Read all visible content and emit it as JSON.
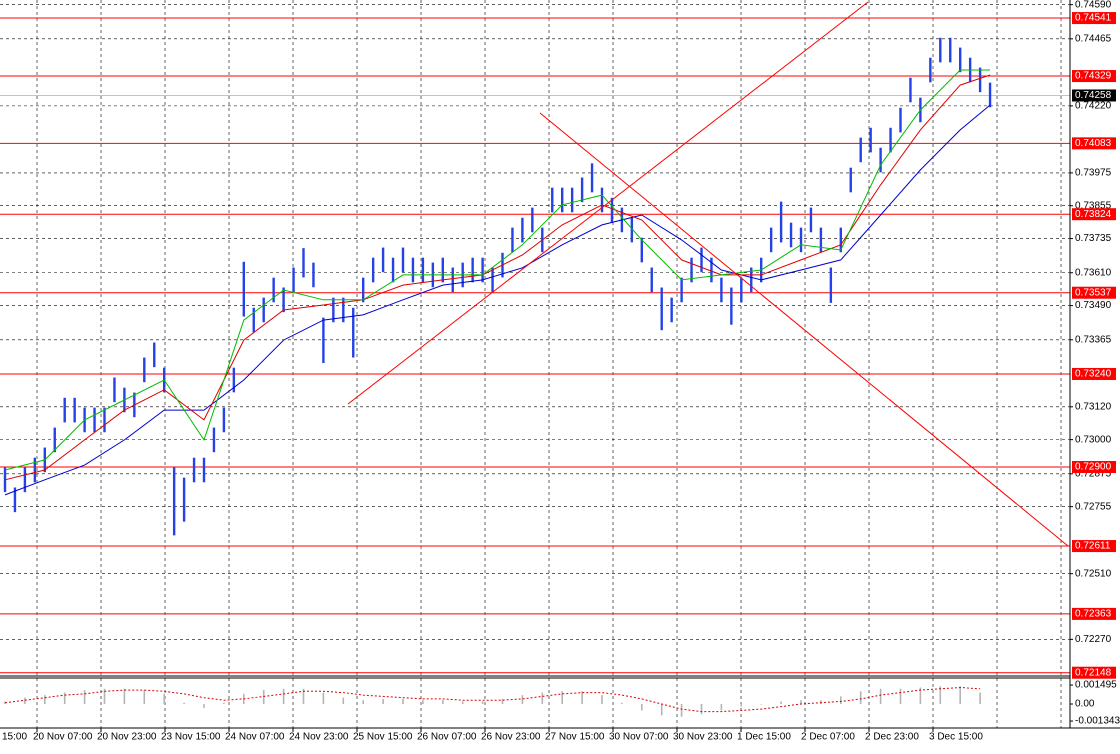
{
  "chart_data": {
    "type": "ohlc",
    "ylim": [
      0.72136,
      0.74607
    ],
    "yticks": [
      {
        "value": 0.7459,
        "label": "0.74590"
      },
      0.74465,
      {
        "value": 0.7422,
        "label": "0.74220"
      },
      0.73975,
      0.73855,
      0.73735,
      {
        "value": 0.7361,
        "label": "0.73610"
      },
      {
        "value": 0.7349,
        "label": "0.73490"
      },
      0.73365,
      {
        "value": 0.7312,
        "label": "0.73120"
      },
      {
        "value": 0.73,
        "label": "0.73000"
      },
      0.72875,
      0.72755,
      {
        "value": 0.7251,
        "label": "0.72510"
      },
      {
        "value": 0.7227,
        "label": "0.72270"
      }
    ],
    "grid": true,
    "levels": [
      0.74541,
      0.74329,
      0.74083,
      0.73824,
      0.73537,
      {
        "value": 0.7324,
        "label": "0.73240"
      },
      {
        "value": 0.729,
        "label": "0.72900"
      },
      0.72611,
      0.72363,
      0.72148
    ],
    "level_color": "#ff0000",
    "current_price": 0.74258,
    "color": "#2442e8",
    "x_labels": [
      "15:00",
      "20 Nov 07:00",
      "20 Nov 23:00",
      "23 Nov 15:00",
      "24 Nov 07:00",
      "24 Nov 23:00",
      "25 Nov 15:00",
      "26 Nov 07:00",
      "26 Nov 23:00",
      "27 Nov 15:00",
      "30 Nov 07:00",
      "30 Nov 23:00",
      "1 Dec 15:00",
      "2 Dec 07:00",
      "2 Dec 23:00",
      "3 Dec 15:00"
    ],
    "highs": [
      0.72898,
      0.72825,
      0.72898,
      0.72934,
      0.72971,
      0.73044,
      0.73153,
      0.73153,
      0.73117,
      0.73117,
      0.73117,
      0.73227,
      0.7319,
      0.73172,
      0.733,
      0.73355,
      0.73263,
      0.72898,
      0.72861,
      0.72934,
      0.72934,
      0.73044,
      0.73117,
      0.73263,
      0.7365,
      0.73482,
      0.73519,
      0.73592,
      0.73556,
      0.73629,
      0.737,
      0.73647,
      0.73446,
      0.73519,
      0.73519,
      0.73482,
      0.73592,
      0.73665,
      0.73702,
      0.73665,
      0.73702,
      0.73665,
      0.73665,
      0.73647,
      0.73665,
      0.73629,
      0.73647,
      0.73665,
      0.73665,
      0.73629,
      0.73683,
      0.73775,
      0.73811,
      0.73848,
      0.73775,
      0.73921,
      0.73921,
      0.73921,
      0.73958,
      0.7401,
      0.73921,
      0.73884,
      0.73848,
      0.73811,
      0.73738,
      0.73629,
      0.73556,
      0.73519,
      0.73592,
      0.73665,
      0.73702,
      0.73665,
      0.73592,
      0.73556,
      0.73592,
      0.73629,
      0.73665,
      0.73775,
      0.7387,
      0.73793,
      0.73775,
      0.73848,
      0.73775,
      0.73629,
      0.73775,
      0.73994,
      0.74104,
      0.7414,
      0.74067,
      0.7414,
      0.74213,
      0.74323,
      0.7425,
      0.74396,
      0.74469,
      0.74469,
      0.74433,
      0.74396,
      0.7436,
      0.74305
    ],
    "lows": [
      0.72808,
      0.72735,
      0.72808,
      0.72844,
      0.72881,
      0.72954,
      0.73063,
      0.73063,
      0.73027,
      0.73027,
      0.73027,
      0.73137,
      0.731,
      0.73082,
      0.7321,
      0.73265,
      0.73173,
      0.7265,
      0.727,
      0.72844,
      0.72844,
      0.72954,
      0.73027,
      0.73173,
      0.7345,
      0.73392,
      0.73429,
      0.73502,
      0.73466,
      0.73539,
      0.73593,
      0.73557,
      0.7328,
      0.73429,
      0.73429,
      0.733,
      0.73502,
      0.73575,
      0.73612,
      0.73575,
      0.73612,
      0.73575,
      0.73575,
      0.73557,
      0.73575,
      0.73539,
      0.73557,
      0.73575,
      0.73575,
      0.73539,
      0.73593,
      0.73685,
      0.73721,
      0.73758,
      0.73685,
      0.73831,
      0.73831,
      0.73831,
      0.73868,
      0.73904,
      0.73831,
      0.73794,
      0.73758,
      0.73721,
      0.73648,
      0.73539,
      0.734,
      0.73429,
      0.73502,
      0.73575,
      0.73612,
      0.73575,
      0.73502,
      0.7342,
      0.73502,
      0.73539,
      0.73575,
      0.73685,
      0.73721,
      0.73703,
      0.73685,
      0.73758,
      0.73685,
      0.735,
      0.73685,
      0.73904,
      0.74014,
      0.7405,
      0.73977,
      0.7405,
      0.74123,
      0.74233,
      0.7416,
      0.74306,
      0.74379,
      0.74379,
      0.74343,
      0.74306,
      0.7427,
      0.74215
    ],
    "moving_averages": [
      {
        "color": "#0000cc",
        "x": [
          0,
          4,
          8,
          12,
          16,
          20,
          24,
          28,
          32,
          36,
          40,
          44,
          48,
          52,
          56,
          60,
          64,
          68,
          72,
          76,
          80,
          84,
          88,
          92,
          96,
          99
        ],
        "values": [
          0.72798,
          0.72853,
          0.72907,
          0.72999,
          0.73108,
          0.73108,
          0.73218,
          0.73364,
          0.73437,
          0.73456,
          0.73511,
          0.73565,
          0.73584,
          0.73628,
          0.73712,
          0.73785,
          0.73821,
          0.7373,
          0.7362,
          0.73584,
          0.7362,
          0.73657,
          0.73821,
          0.73986,
          0.74132,
          0.74223
        ]
      },
      {
        "color": "#dd0000",
        "x": [
          0,
          4,
          8,
          12,
          16,
          20,
          24,
          28,
          32,
          36,
          40,
          44,
          48,
          52,
          56,
          60,
          64,
          68,
          72,
          76,
          80,
          84,
          88,
          92,
          96,
          99
        ],
        "values": [
          0.72853,
          0.72889,
          0.72999,
          0.73108,
          0.73182,
          0.73072,
          0.73364,
          0.73474,
          0.73492,
          0.73511,
          0.73565,
          0.73584,
          0.73602,
          0.73675,
          0.73785,
          0.73858,
          0.73803,
          0.73657,
          0.73602,
          0.73602,
          0.73657,
          0.73712,
          0.73931,
          0.74132,
          0.74296,
          0.74333
        ]
      },
      {
        "color": "#00bb00",
        "x": [
          0,
          4,
          8,
          12,
          16,
          20,
          24,
          28,
          32,
          36,
          40,
          44,
          48,
          52,
          56,
          60,
          64,
          68,
          72,
          76,
          80,
          84,
          88,
          92,
          96,
          99
        ],
        "values": [
          0.72889,
          0.72926,
          0.73072,
          0.73145,
          0.73218,
          0.72999,
          0.73437,
          0.73547,
          0.73511,
          0.73511,
          0.73602,
          0.73602,
          0.73602,
          0.73712,
          0.73858,
          0.73894,
          0.7373,
          0.73584,
          0.73602,
          0.7362,
          0.73712,
          0.73693,
          0.74004,
          0.74205,
          0.74351,
          0.74351
        ]
      }
    ],
    "oscillator": {
      "ylim": [
        -0.00189,
        0.00205
      ],
      "yticks": [
        0.001495,
        {
          "value": 0,
          "label": "0.00"
        },
        -0.001343
      ],
      "hist_color": "#b4b4b4",
      "signal_color": "#dd0000",
      "histogram": [
        0.0002,
        0.0005,
        0.0007,
        0.0009,
        0.0011,
        0.0012,
        0.0012,
        0.0011,
        0.0008,
        0.0001,
        -0.0003,
        0.0001,
        0.0008,
        0.0011,
        0.0012,
        0.0012,
        0.0009,
        0.0005,
        0.0003,
        0.0004,
        0.0004,
        0.0003,
        0.0003,
        0.0002,
        0.0002,
        0.0004,
        0.0007,
        0.0009,
        0.001,
        0.001,
        0.0007,
        0.0001,
        -0.0005,
        -0.0009,
        -0.001,
        -0.0008,
        -0.0005,
        -0.0002,
        0,
        0.0002,
        0.0003,
        0.0003,
        0.0006,
        0.001,
        0.0012,
        0.0012,
        0.0013,
        0.0014,
        0.0014,
        0.0009
      ],
      "signal": [
        0.0001,
        0.0003,
        0.0005,
        0.0007,
        0.0008,
        0.001,
        0.0011,
        0.0011,
        0.001,
        0.0008,
        0.0005,
        0.0003,
        0.0004,
        0.0006,
        0.0008,
        0.001,
        0.001,
        0.0009,
        0.0007,
        0.0006,
        0.0005,
        0.0004,
        0.0004,
        0.0003,
        0.0003,
        0.0003,
        0.0004,
        0.0006,
        0.0008,
        0.0009,
        0.0009,
        0.0007,
        0.0004,
        0,
        -0.0004,
        -0.0006,
        -0.0006,
        -0.0005,
        -0.0004,
        -0.0002,
        0,
        0.0001,
        0.0002,
        0.0004,
        0.0007,
        0.0009,
        0.0011,
        0.0012,
        0.0013,
        0.0012
      ]
    }
  }
}
